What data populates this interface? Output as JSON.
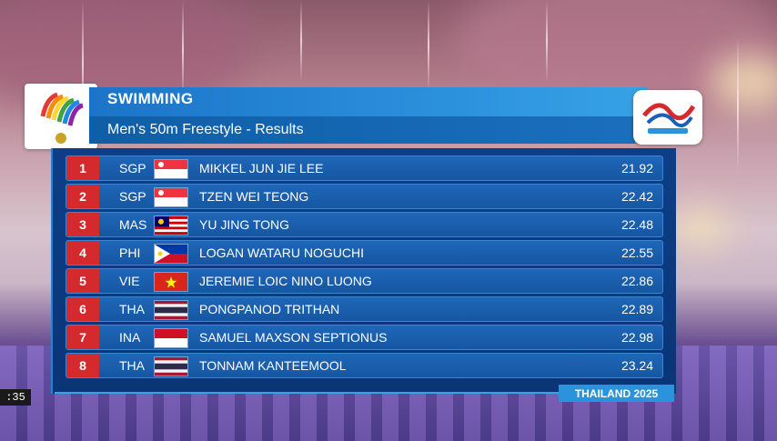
{
  "header": {
    "sport": "SWIMMING",
    "event": "Men's 50m Freestyle - Results"
  },
  "results": [
    {
      "rank": "1",
      "country": "SGP",
      "flag": "singapore-flag",
      "name": "MIKKEL JUN JIE LEE",
      "time": "21.92"
    },
    {
      "rank": "2",
      "country": "SGP",
      "flag": "singapore-flag",
      "name": "TZEN WEI TEONG",
      "time": "22.42"
    },
    {
      "rank": "3",
      "country": "MAS",
      "flag": "malaysia-flag",
      "name": "YU JING TONG",
      "time": "22.48"
    },
    {
      "rank": "4",
      "country": "PHI",
      "flag": "philippines-flag",
      "name": "LOGAN WATARU NOGUCHI",
      "time": "22.55"
    },
    {
      "rank": "5",
      "country": "VIE",
      "flag": "vietnam-flag",
      "name": "JEREMIE LOIC NINO LUONG",
      "time": "22.86"
    },
    {
      "rank": "6",
      "country": "THA",
      "flag": "thailand-flag",
      "name": "PONGPANOD TRITHAN",
      "time": "22.89"
    },
    {
      "rank": "7",
      "country": "INA",
      "flag": "indonesia-flag",
      "name": "SAMUEL MAXSON SEPTIONUS",
      "time": "22.98"
    },
    {
      "rank": "8",
      "country": "THA",
      "flag": "thailand-flag",
      "name": "TONNAM KANTEEMOOL",
      "time": "23.24"
    }
  ],
  "footer": {
    "tag": "THAILAND 2025"
  },
  "player": {
    "clock": ":35"
  },
  "colors": {
    "header_blue": "#1b74c8",
    "panel_blue": "#0c3f88",
    "rank_red": "#d42a2e"
  }
}
